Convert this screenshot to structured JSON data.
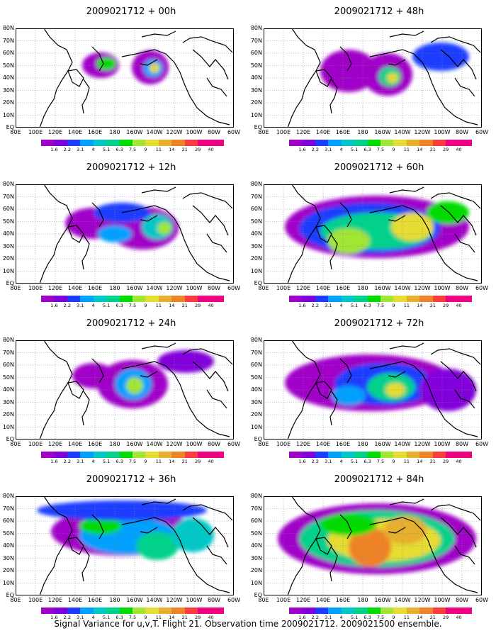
{
  "panels": [
    {
      "title": "2009021712 + 00h",
      "level": 0
    },
    {
      "title": "2009021712 + 48h",
      "level": 4
    },
    {
      "title": "2009021712 + 12h",
      "level": 1
    },
    {
      "title": "2009021712 + 60h",
      "level": 5
    },
    {
      "title": "2009021712 + 24h",
      "level": 2
    },
    {
      "title": "2009021712 + 72h",
      "level": 6
    },
    {
      "title": "2009021712 + 36h",
      "level": 3
    },
    {
      "title": "2009021712 + 84h",
      "level": 7
    }
  ],
  "lat_labels": [
    "80N",
    "70N",
    "60N",
    "50N",
    "40N",
    "30N",
    "20N",
    "10N",
    "EQ"
  ],
  "lon_labels": [
    "80E",
    "100E",
    "120E",
    "140E",
    "160E",
    "180",
    "160W",
    "140W",
    "120W",
    "100W",
    "80W",
    "60W"
  ],
  "colorbar": {
    "labels": [
      "1.6",
      "2.2",
      "3.1",
      "4",
      "5.1",
      "6.3",
      "7.5",
      "9",
      "11",
      "14",
      "21",
      "29",
      "40"
    ],
    "colors": [
      "#a000c8",
      "#8200dc",
      "#1e3cff",
      "#00a0ff",
      "#00c8c8",
      "#00d28c",
      "#00dc00",
      "#a0e632",
      "#e6dc32",
      "#e6af2d",
      "#f08228",
      "#fa3c3c",
      "#f00082"
    ]
  },
  "caption": "Signal Variance for u,v,T. Flight 21. Observation time 2009021712. 2009021500 ensemble."
}
